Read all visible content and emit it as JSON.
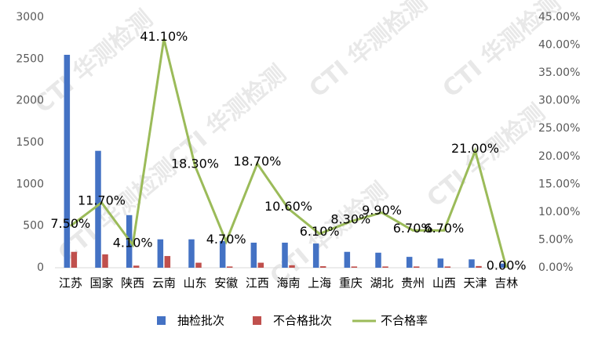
{
  "chart_data": {
    "type": "combo",
    "watermark": "CTI 华测检测",
    "categories": [
      "江苏",
      "国家",
      "陕西",
      "云南",
      "山东",
      "安徽",
      "江西",
      "海南",
      "上海",
      "重庆",
      "湖北",
      "贵州",
      "山西",
      "天津",
      "吉林"
    ],
    "series": [
      {
        "name": "抽检批次",
        "type": "bar",
        "color": "#4472c4",
        "values": [
          2550,
          1400,
          630,
          340,
          340,
          320,
          300,
          300,
          290,
          190,
          180,
          130,
          110,
          100,
          50
        ]
      },
      {
        "name": "不合格批次",
        "type": "bar",
        "color": "#c0504d",
        "values": [
          190,
          160,
          25,
          140,
          60,
          15,
          60,
          30,
          18,
          15,
          15,
          15,
          15,
          20,
          0
        ]
      },
      {
        "name": "不合格率",
        "type": "line",
        "axis": "y2",
        "color": "#9bbb59",
        "values": [
          7.5,
          11.7,
          4.1,
          41.1,
          18.3,
          4.7,
          18.7,
          10.6,
          6.1,
          8.3,
          9.9,
          6.7,
          6.7,
          21.0,
          0.0
        ],
        "value_labels": [
          "7.50%",
          "11.70%",
          "4.10%",
          "41.10%",
          "18.30%",
          "4.70%",
          "18.70%",
          "10.60%",
          "6.10%",
          "8.30%",
          "9.90%",
          "6.70%",
          "6.70%",
          "21.00%",
          "0.00%"
        ]
      }
    ],
    "ylim": [
      0,
      3000
    ],
    "yticks": [
      0,
      500,
      1000,
      1500,
      2000,
      2500,
      3000
    ],
    "y2lim": [
      0,
      45
    ],
    "y2ticks": [
      {
        "value": 0,
        "label": "0.00%"
      },
      {
        "value": 5,
        "label": "5.00%"
      },
      {
        "value": 10,
        "label": "10.00%"
      },
      {
        "value": 15,
        "label": "15.00%"
      },
      {
        "value": 20,
        "label": "20.00%"
      },
      {
        "value": 25,
        "label": "25.00%"
      },
      {
        "value": 30,
        "label": "30.00%"
      },
      {
        "value": 35,
        "label": "35.00%"
      },
      {
        "value": 40,
        "label": "40.00%"
      },
      {
        "value": 45,
        "label": "45.00%"
      }
    ],
    "legend": "bottom"
  }
}
